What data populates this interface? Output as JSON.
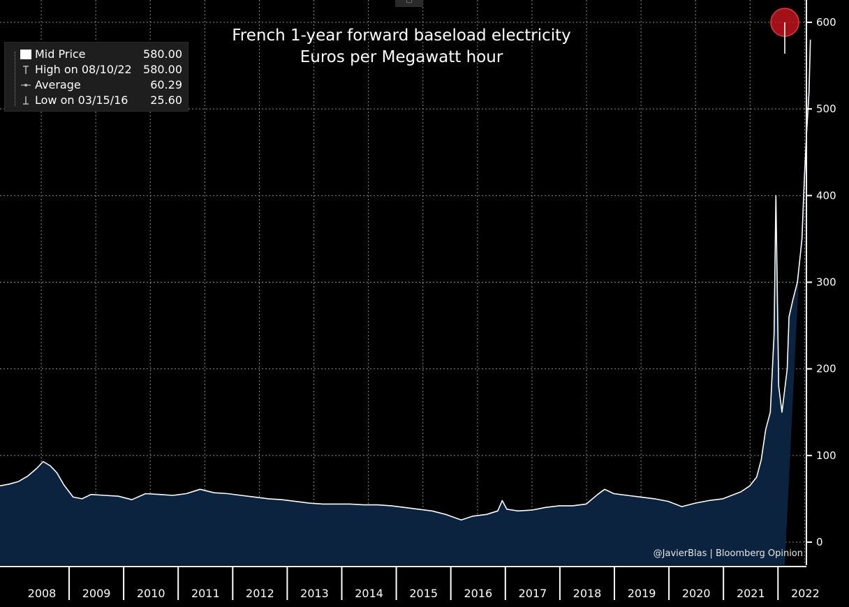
{
  "toolbar": {
    "chart_options_icon": "chart-options-icon"
  },
  "legend": {
    "items": [
      {
        "name": "Mid Price",
        "value": "580.00",
        "icon": "white-square-icon"
      },
      {
        "name": "High on 08/10/22",
        "value": "580.00",
        "icon": "high-marker-icon"
      },
      {
        "name": "Average",
        "value": "60.29",
        "icon": "average-line-icon"
      },
      {
        "name": "Low on 03/15/16",
        "value": "25.60",
        "icon": "low-marker-icon"
      }
    ]
  },
  "credit": "@JavierBlas | Bloomberg Opinion",
  "colors": {
    "background": "#000000",
    "area_fill": "#0c2340",
    "line": "#ffffff",
    "grid": "#8a8a8a",
    "highlight": "#c0141c"
  },
  "chart_data": {
    "type": "area",
    "title": "French 1-year forward baseload electricity",
    "subtitle": "Euros per Megawatt hour",
    "xlabel": "",
    "ylabel": "",
    "ylim": [
      0,
      600
    ],
    "yticks": [
      "0",
      "100",
      "200",
      "300",
      "400",
      "500",
      "600"
    ],
    "xticks": [
      "2008",
      "2009",
      "2010",
      "2011",
      "2012",
      "2013",
      "2014",
      "2015",
      "2016",
      "2017",
      "2018",
      "2019",
      "2020",
      "2021",
      "2022"
    ],
    "grid": true,
    "legend_position": "top-left",
    "highlight_point": {
      "x": "2022-08-10",
      "y": 580
    },
    "series": [
      {
        "name": "Mid Price",
        "x": [
          "2007-03-01",
          "2007-06-01",
          "2007-09-01",
          "2007-12-01",
          "2008-02-01",
          "2008-04-01",
          "2008-06-01",
          "2008-07-15",
          "2008-09-01",
          "2008-10-15",
          "2008-12-01",
          "2009-02-01",
          "2009-04-01",
          "2009-06-01",
          "2009-09-01",
          "2009-12-01",
          "2010-03-01",
          "2010-06-01",
          "2010-09-01",
          "2010-12-01",
          "2011-03-01",
          "2011-06-01",
          "2011-09-01",
          "2011-12-01",
          "2012-03-01",
          "2012-06-01",
          "2012-09-01",
          "2012-12-01",
          "2013-03-01",
          "2013-06-01",
          "2013-09-01",
          "2013-12-01",
          "2014-03-01",
          "2014-06-01",
          "2014-09-01",
          "2014-12-01",
          "2015-03-01",
          "2015-06-01",
          "2015-09-01",
          "2015-12-01",
          "2016-03-15",
          "2016-06-01",
          "2016-09-01",
          "2016-11-15",
          "2016-12-15",
          "2017-01-15",
          "2017-04-01",
          "2017-07-01",
          "2017-10-01",
          "2018-01-01",
          "2018-04-01",
          "2018-07-01",
          "2018-09-15",
          "2018-11-01",
          "2019-01-01",
          "2019-04-01",
          "2019-07-01",
          "2019-10-01",
          "2020-01-01",
          "2020-04-01",
          "2020-07-01",
          "2020-10-01",
          "2021-01-01",
          "2021-03-01",
          "2021-05-01",
          "2021-07-01",
          "2021-08-15",
          "2021-09-15",
          "2021-10-15",
          "2021-11-15",
          "2021-12-10",
          "2021-12-22",
          "2022-01-10",
          "2022-02-01",
          "2022-03-08",
          "2022-03-20",
          "2022-04-15",
          "2022-05-15",
          "2022-06-15",
          "2022-07-01",
          "2022-07-15",
          "2022-08-01",
          "2022-08-10"
        ],
        "values": [
          63,
          66,
          64,
          67,
          70,
          76,
          85,
          93,
          88,
          80,
          66,
          52,
          50,
          55,
          54,
          53,
          49,
          56,
          55,
          54,
          56,
          61,
          57,
          56,
          54,
          52,
          50,
          49,
          47,
          45,
          44,
          44,
          44,
          43,
          43,
          42,
          40,
          38,
          36,
          32,
          25.6,
          30,
          32,
          36,
          48,
          38,
          36,
          37,
          40,
          42,
          42,
          44,
          55,
          61,
          56,
          54,
          52,
          50,
          47,
          41,
          45,
          48,
          50,
          54,
          58,
          65,
          75,
          95,
          130,
          150,
          240,
          400,
          180,
          150,
          200,
          260,
          280,
          300,
          350,
          420,
          470,
          520,
          580
        ]
      }
    ]
  }
}
